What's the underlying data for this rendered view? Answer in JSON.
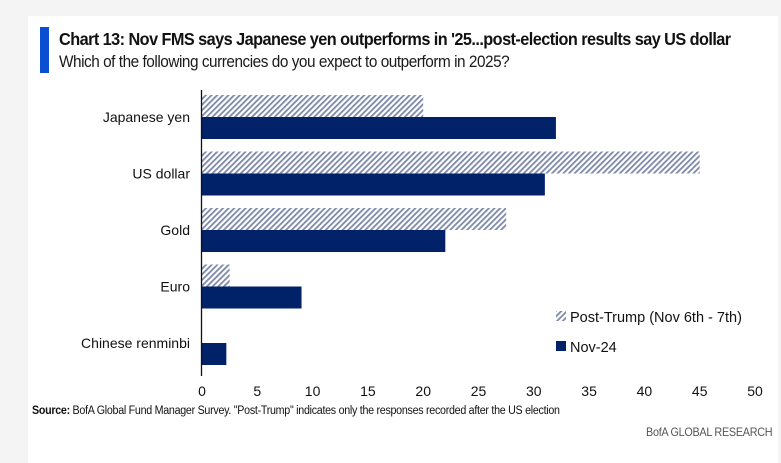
{
  "header": {
    "title": "Chart 13: Nov FMS says Japanese yen outperforms in '25...post-election results say US dollar",
    "subtitle": "Which of the following currencies do you expect to outperform in 2025?"
  },
  "footer": {
    "source_label": "Source:",
    "source_text": " BofA Global Fund Manager Survey. \"Post-Trump\" indicates only the responses recorded after the US election",
    "brand": "BofA GLOBAL RESEARCH"
  },
  "colors": {
    "accent": "#0a4fd1",
    "nov24": "#012169",
    "post_trump_hatch": "#7d88a8"
  },
  "chart_data": {
    "type": "bar",
    "orientation": "horizontal",
    "title": "Chart 13: Nov FMS says Japanese yen outperforms in '25...post-election results say US dollar",
    "subtitle": "Which of the following currencies do you expect to outperform in 2025?",
    "categories": [
      "Japanese yen",
      "US dollar",
      "Gold",
      "Euro",
      "Chinese renminbi"
    ],
    "series": [
      {
        "name": "Post-Trump (Nov 6th - 7th)",
        "style": "hatched",
        "values": [
          20,
          45,
          27.5,
          2.5,
          0
        ]
      },
      {
        "name": "Nov-24",
        "style": "solid",
        "values": [
          32,
          31,
          22,
          9,
          2.2
        ]
      }
    ],
    "xlabel": "",
    "ylabel": "",
    "xlim": [
      0,
      50
    ],
    "xticks": [
      0,
      5,
      10,
      15,
      20,
      25,
      30,
      35,
      40,
      45,
      50
    ],
    "grid": false,
    "legend_position": "bottom-right"
  }
}
